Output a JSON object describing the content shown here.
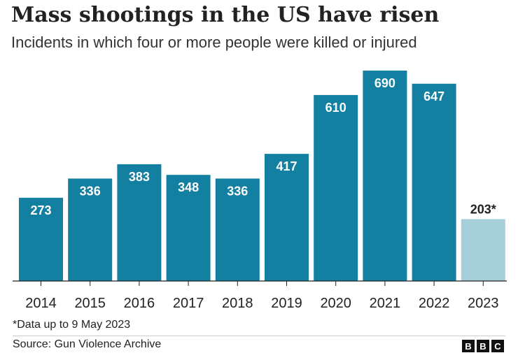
{
  "header": {
    "title": "Mass shootings in the US have risen",
    "subtitle": "Incidents in which four or more people were killed or injured"
  },
  "footer": {
    "footnote": "*Data up to 9 May 2023",
    "source": "Source: Gun Violence Archive",
    "logo_letters": [
      "B",
      "B",
      "C"
    ]
  },
  "colors": {
    "bar": "#1380A1",
    "bar_partial": "#A7CFDA",
    "axis": "#222222",
    "label_inside": "#FFFFFF",
    "label_outside": "#222222"
  },
  "chart_data": {
    "type": "bar",
    "title": "Mass shootings in the US have risen",
    "subtitle": "Incidents in which four or more people were killed or injured",
    "categories": [
      "2014",
      "2015",
      "2016",
      "2017",
      "2018",
      "2019",
      "2020",
      "2021",
      "2022",
      "2023"
    ],
    "values": [
      273,
      336,
      383,
      348,
      336,
      417,
      610,
      690,
      647,
      203
    ],
    "value_labels": [
      "273",
      "336",
      "383",
      "348",
      "336",
      "417",
      "610",
      "690",
      "647",
      "203*"
    ],
    "partial": [
      false,
      false,
      false,
      false,
      false,
      false,
      false,
      false,
      false,
      true
    ],
    "ylim": [
      0,
      690
    ],
    "grid": false,
    "legend": "none",
    "xlabel": "",
    "ylabel": ""
  }
}
